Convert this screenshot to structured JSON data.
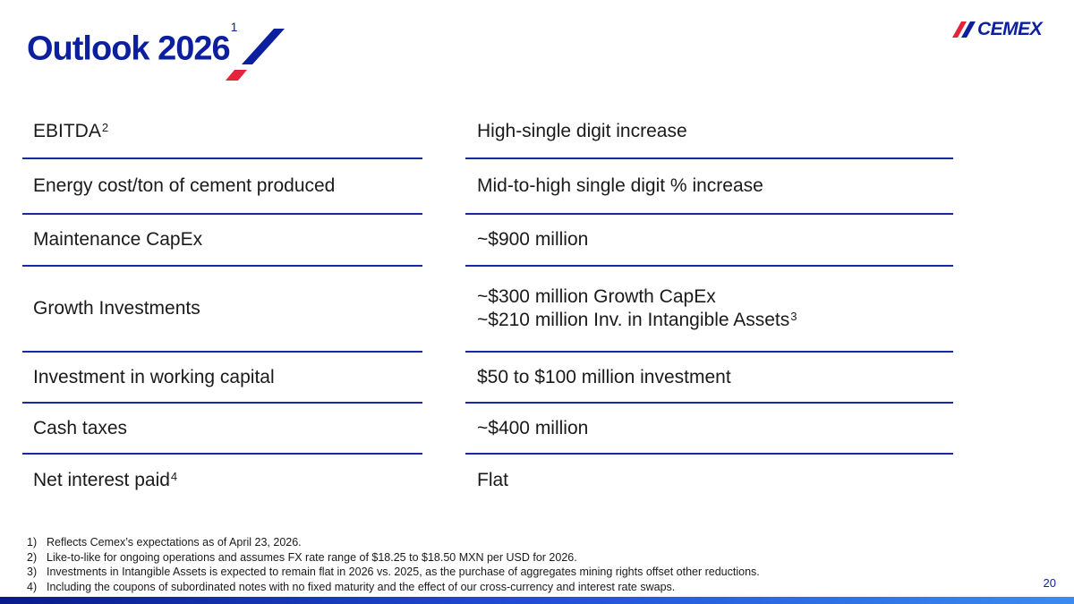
{
  "header": {
    "title": "Outlook 2026",
    "title_footnote": "1",
    "logo_text": "CEMEX"
  },
  "table": {
    "rows": [
      {
        "label": "EBITDA",
        "label_sup": "2",
        "values": [
          "High-single digit increase"
        ],
        "value_sup": ""
      },
      {
        "label": "Energy cost/ton of cement produced",
        "label_sup": "",
        "values": [
          "Mid-to-high single digit % increase"
        ],
        "value_sup": ""
      },
      {
        "label": "Maintenance CapEx",
        "label_sup": "",
        "values": [
          "~$900 million"
        ],
        "value_sup": ""
      },
      {
        "label": "Growth Investments",
        "label_sup": "",
        "values": [
          "~$300 million Growth CapEx",
          "~$210 million Inv. in Intangible Assets"
        ],
        "value_sup": "3"
      },
      {
        "label": "Investment in working capital",
        "label_sup": "",
        "values": [
          "$50 to $100 million investment"
        ],
        "value_sup": ""
      },
      {
        "label": "Cash taxes",
        "label_sup": "",
        "values": [
          "~$400 million"
        ],
        "value_sup": ""
      },
      {
        "label": "Net interest paid",
        "label_sup": "4",
        "values": [
          "Flat"
        ],
        "value_sup": ""
      }
    ]
  },
  "footnotes": [
    {
      "num": "1)",
      "text": "Reflects Cemex’s expectations as of April 23, 2026."
    },
    {
      "num": "2)",
      "text": "Like-to-like for ongoing operations and assumes FX rate range of $18.25 to $18.50 MXN per USD for 2026."
    },
    {
      "num": "3)",
      "text": "Investments in Intangible Assets is expected to remain flat in 2026 vs. 2025, as the purchase of aggregates mining rights offset other reductions."
    },
    {
      "num": "4)",
      "text": "Including the coupons of subordinated notes with no fixed maturity and the effect of our cross-currency and interest rate swaps."
    }
  ],
  "page_number": "20",
  "colors": {
    "brand_blue": "#0c1f9e",
    "brand_red": "#e3243b",
    "rule_blue": "#1a2aa0"
  }
}
